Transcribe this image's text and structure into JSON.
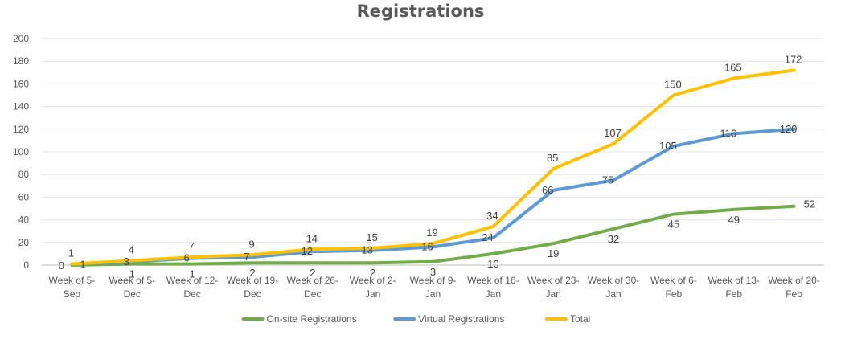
{
  "chart_data": {
    "type": "line",
    "title": "Registrations",
    "xlabel": "",
    "ylabel": "",
    "ylim": [
      0,
      200
    ],
    "yticks": [
      0,
      20,
      40,
      60,
      80,
      100,
      120,
      140,
      160,
      180,
      200
    ],
    "grid": true,
    "legend_position": "bottom",
    "categories": [
      [
        "Week of 5-",
        "Sep"
      ],
      [
        "Week of 5-",
        "Dec"
      ],
      [
        "Week of 12-",
        "Dec"
      ],
      [
        "Week of 19-",
        "Dec"
      ],
      [
        "Week of 26-",
        "Dec"
      ],
      [
        "Week of 2-",
        "Jan"
      ],
      [
        "Week of 9-",
        "Jan"
      ],
      [
        "Week of 16-",
        "Jan"
      ],
      [
        "Week of 23-",
        "Jan"
      ],
      [
        "Week of 30-",
        "Jan"
      ],
      [
        "Week of 6-",
        "Feb"
      ],
      [
        "Week of 13-",
        "Feb"
      ],
      [
        "Week of 20-",
        "Feb"
      ]
    ],
    "series": [
      {
        "name": "On-site Registrations",
        "color": "#70AD47",
        "values": [
          0,
          1,
          1,
          2,
          2,
          2,
          3,
          10,
          19,
          32,
          45,
          49,
          52
        ]
      },
      {
        "name": "Virtual Registrations",
        "color": "#5B9BD5",
        "values": [
          1,
          3,
          6,
          7,
          12,
          13,
          16,
          24,
          66,
          75,
          105,
          116,
          120
        ]
      },
      {
        "name": "Total",
        "color": "#FFC000",
        "values": [
          1,
          4,
          7,
          9,
          14,
          15,
          19,
          34,
          85,
          107,
          150,
          165,
          172
        ]
      }
    ]
  }
}
